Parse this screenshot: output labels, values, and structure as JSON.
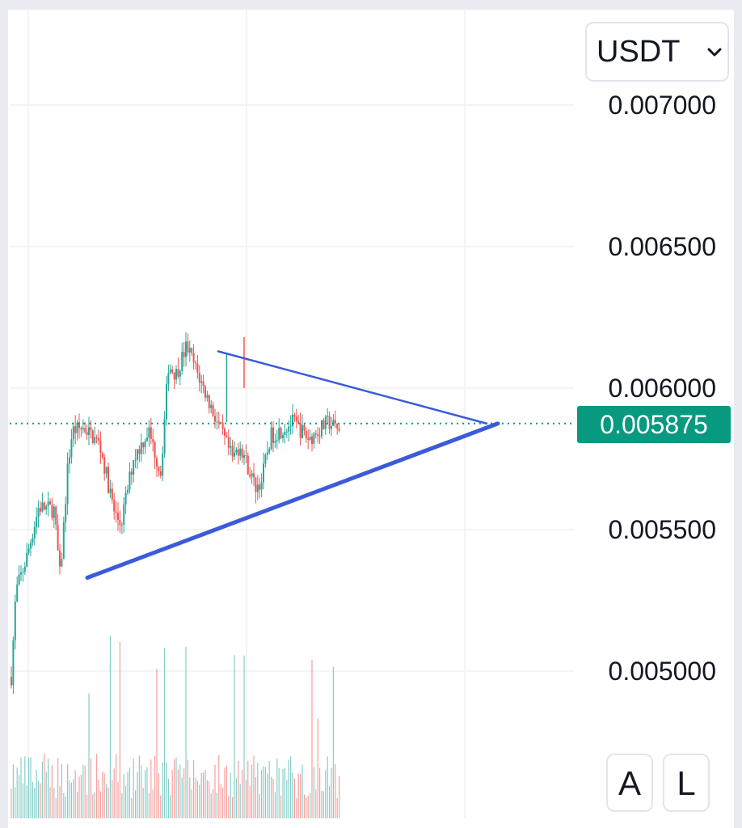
{
  "currency_select": {
    "value": "USDT"
  },
  "scale_buttons": {
    "auto": "A",
    "log": "L"
  },
  "colors": {
    "up": "#26a69a",
    "down": "#ef5350",
    "trendline": "#3b5bdb",
    "price_line": "#089981",
    "grid": "#eef0f3"
  },
  "chart_data": {
    "type": "candlestick",
    "title": "",
    "xlabel": "",
    "ylabel": "",
    "y_ticks": [
      "0.007000",
      "0.006500",
      "0.006000",
      "0.005500",
      "0.005000"
    ],
    "y_tick_values": [
      0.007,
      0.0065,
      0.006,
      0.0055,
      0.005
    ],
    "ylim": [
      0.00466,
      0.00737
    ],
    "last_price": "0.005875",
    "last_price_value": 0.005875,
    "grid": true,
    "volume_bars": true,
    "candle_count": 170,
    "price_path": [
      [
        0,
        0.00498
      ],
      [
        3,
        0.00528
      ],
      [
        10,
        0.0054
      ],
      [
        18,
        0.00558
      ],
      [
        28,
        0.00557
      ],
      [
        32,
        0.00533
      ],
      [
        37,
        0.00572
      ],
      [
        40,
        0.00585
      ],
      [
        48,
        0.00586
      ],
      [
        58,
        0.0058
      ],
      [
        68,
        0.00555
      ],
      [
        72,
        0.00552
      ],
      [
        80,
        0.00575
      ],
      [
        90,
        0.00585
      ],
      [
        98,
        0.0057
      ],
      [
        103,
        0.00608
      ],
      [
        108,
        0.00605
      ],
      [
        115,
        0.00615
      ],
      [
        120,
        0.00608
      ],
      [
        135,
        0.00588
      ],
      [
        145,
        0.00575
      ],
      [
        150,
        0.0058
      ],
      [
        160,
        0.00565
      ],
      [
        164,
        0.00567
      ],
      [
        170,
        0.00583
      ],
      [
        185,
        0.00588
      ],
      [
        195,
        0.00582
      ],
      [
        208,
        0.00588
      ],
      [
        215,
        0.00585
      ]
    ],
    "trendlines": [
      {
        "name": "resistance",
        "from": [
          0.0,
          0.00613
        ],
        "to": [
          0.59,
          0.005875
        ]
      },
      {
        "name": "support",
        "from": [
          0.105,
          0.00533
        ],
        "to": [
          0.61,
          0.005875
        ]
      }
    ]
  }
}
